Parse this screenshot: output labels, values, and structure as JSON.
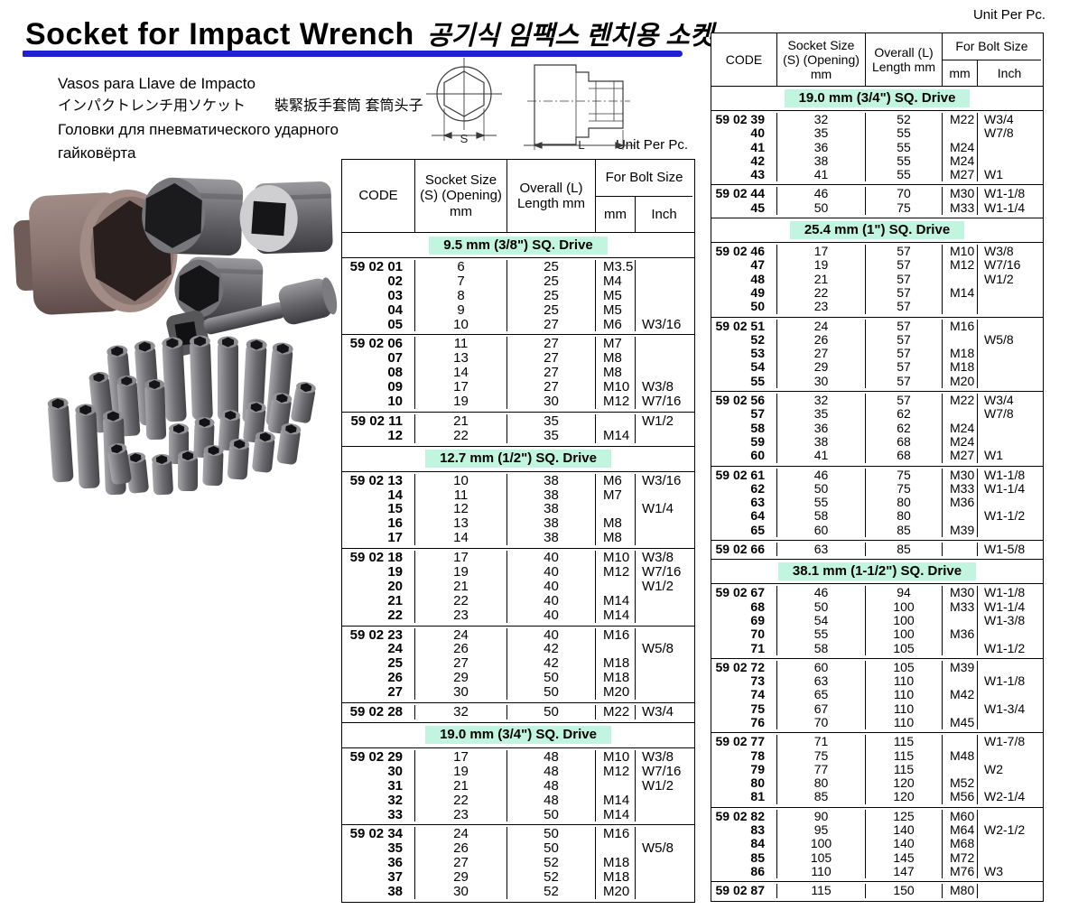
{
  "page": {
    "title_en": "Socket for Impact Wrench",
    "title_ko": "공기식 임팩스 렌치용 소켓",
    "unit_label": "Unit Per Pc.",
    "accent_blue": "#2222cc",
    "band_green": "#c2f5df",
    "subtitle": [
      "Vasos para Llave de Impacto",
      "インパクトレンチ用ソケット　　裝緊扳手套筒 套筒头子",
      "Головки для пневматического ударного",
      "гайковёрта"
    ]
  },
  "drawing": {
    "dim_s": "S",
    "dim_l": "L"
  },
  "headers": {
    "code": "CODE",
    "size1": "Socket Size",
    "size2": "(S) (Opening)",
    "size3": "mm",
    "len1": "Overall (L)",
    "len2": "Length mm",
    "bolt": "For Bolt Size",
    "mm": "mm",
    "inch": "Inch"
  },
  "left_table": {
    "sections": [
      {
        "band": "9.5 mm (3/8\") SQ. Drive",
        "groups": [
          [
            [
              "59 02 01",
              "6",
              "25",
              "M3.5",
              ""
            ],
            [
              "02",
              "7",
              "25",
              "M4",
              ""
            ],
            [
              "03",
              "8",
              "25",
              "M5",
              ""
            ],
            [
              "04",
              "9",
              "25",
              "M5",
              ""
            ],
            [
              "05",
              "10",
              "27",
              "M6",
              "W3/16"
            ]
          ],
          [
            [
              "59 02 06",
              "11",
              "27",
              "M7",
              ""
            ],
            [
              "07",
              "13",
              "27",
              "M8",
              ""
            ],
            [
              "08",
              "14",
              "27",
              "M8",
              ""
            ],
            [
              "09",
              "17",
              "27",
              "M10",
              "W3/8"
            ],
            [
              "10",
              "19",
              "30",
              "M12",
              "W7/16"
            ]
          ],
          [
            [
              "59 02 11",
              "21",
              "35",
              "",
              "W1/2"
            ],
            [
              "12",
              "22",
              "35",
              "M14",
              ""
            ]
          ]
        ]
      },
      {
        "band": "12.7 mm (1/2\") SQ. Drive",
        "groups": [
          [
            [
              "59 02 13",
              "10",
              "38",
              "M6",
              "W3/16"
            ],
            [
              "14",
              "11",
              "38",
              "M7",
              ""
            ],
            [
              "15",
              "12",
              "38",
              "",
              "W1/4"
            ],
            [
              "16",
              "13",
              "38",
              "M8",
              ""
            ],
            [
              "17",
              "14",
              "38",
              "M8",
              ""
            ]
          ],
          [
            [
              "59 02 18",
              "17",
              "40",
              "M10",
              "W3/8"
            ],
            [
              "19",
              "19",
              "40",
              "M12",
              "W7/16"
            ],
            [
              "20",
              "21",
              "40",
              "",
              "W1/2"
            ],
            [
              "21",
              "22",
              "40",
              "M14",
              ""
            ],
            [
              "22",
              "23",
              "40",
              "M14",
              ""
            ]
          ],
          [
            [
              "59 02 23",
              "24",
              "40",
              "M16",
              ""
            ],
            [
              "24",
              "26",
              "42",
              "",
              "W5/8"
            ],
            [
              "25",
              "27",
              "42",
              "M18",
              ""
            ],
            [
              "26",
              "29",
              "50",
              "M18",
              ""
            ],
            [
              "27",
              "30",
              "50",
              "M20",
              ""
            ]
          ],
          [
            [
              "59 02 28",
              "32",
              "50",
              "M22",
              "W3/4"
            ]
          ]
        ]
      },
      {
        "band": "19.0 mm (3/4\") SQ. Drive",
        "groups": [
          [
            [
              "59 02 29",
              "17",
              "48",
              "M10",
              "W3/8"
            ],
            [
              "30",
              "19",
              "48",
              "M12",
              "W7/16"
            ],
            [
              "31",
              "21",
              "48",
              "",
              "W1/2"
            ],
            [
              "32",
              "22",
              "48",
              "M14",
              ""
            ],
            [
              "33",
              "23",
              "50",
              "M14",
              ""
            ]
          ],
          [
            [
              "59 02 34",
              "24",
              "50",
              "M16",
              ""
            ],
            [
              "35",
              "26",
              "50",
              "",
              "W5/8"
            ],
            [
              "36",
              "27",
              "52",
              "M18",
              ""
            ],
            [
              "37",
              "29",
              "52",
              "M18",
              ""
            ],
            [
              "38",
              "30",
              "52",
              "M20",
              ""
            ]
          ]
        ]
      }
    ]
  },
  "right_table": {
    "sections": [
      {
        "band": "19.0 mm (3/4\") SQ. Drive",
        "groups": [
          [
            [
              "59 02 39",
              "32",
              "52",
              "M22",
              "W3/4"
            ],
            [
              "40",
              "35",
              "55",
              "",
              "W7/8"
            ],
            [
              "41",
              "36",
              "55",
              "M24",
              ""
            ],
            [
              "42",
              "38",
              "55",
              "M24",
              ""
            ],
            [
              "43",
              "41",
              "55",
              "M27",
              "W1"
            ]
          ],
          [
            [
              "59 02 44",
              "46",
              "70",
              "M30",
              "W1-1/8"
            ],
            [
              "45",
              "50",
              "75",
              "M33",
              "W1-1/4"
            ]
          ]
        ]
      },
      {
        "band": "25.4 mm (1\") SQ. Drive",
        "groups": [
          [
            [
              "59 02 46",
              "17",
              "57",
              "M10",
              "W3/8"
            ],
            [
              "47",
              "19",
              "57",
              "M12",
              "W7/16"
            ],
            [
              "48",
              "21",
              "57",
              "",
              "W1/2"
            ],
            [
              "49",
              "22",
              "57",
              "M14",
              ""
            ],
            [
              "50",
              "23",
              "57",
              "",
              ""
            ]
          ],
          [
            [
              "59 02 51",
              "24",
              "57",
              "M16",
              ""
            ],
            [
              "52",
              "26",
              "57",
              "",
              "W5/8"
            ],
            [
              "53",
              "27",
              "57",
              "M18",
              ""
            ],
            [
              "54",
              "29",
              "57",
              "M18",
              ""
            ],
            [
              "55",
              "30",
              "57",
              "M20",
              ""
            ]
          ],
          [
            [
              "59 02 56",
              "32",
              "57",
              "M22",
              "W3/4"
            ],
            [
              "57",
              "35",
              "62",
              "",
              "W7/8"
            ],
            [
              "58",
              "36",
              "62",
              "M24",
              ""
            ],
            [
              "59",
              "38",
              "68",
              "M24",
              ""
            ],
            [
              "60",
              "41",
              "68",
              "M27",
              "W1"
            ]
          ],
          [
            [
              "59 02 61",
              "46",
              "75",
              "M30",
              "W1-1/8"
            ],
            [
              "62",
              "50",
              "75",
              "M33",
              "W1-1/4"
            ],
            [
              "63",
              "55",
              "80",
              "M36",
              ""
            ],
            [
              "64",
              "58",
              "80",
              "",
              "W1-1/2"
            ],
            [
              "65",
              "60",
              "85",
              "M39",
              ""
            ]
          ],
          [
            [
              "59 02 66",
              "63",
              "85",
              "",
              "W1-5/8"
            ]
          ]
        ]
      },
      {
        "band": "38.1 mm (1-1/2\") SQ. Drive",
        "groups": [
          [
            [
              "59 02 67",
              "46",
              "94",
              "M30",
              "W1-1/8"
            ],
            [
              "68",
              "50",
              "100",
              "M33",
              "W1-1/4"
            ],
            [
              "69",
              "54",
              "100",
              "",
              "W1-3/8"
            ],
            [
              "70",
              "55",
              "100",
              "M36",
              ""
            ],
            [
              "71",
              "58",
              "105",
              "",
              "W1-1/2"
            ]
          ],
          [
            [
              "59 02 72",
              "60",
              "105",
              "M39",
              ""
            ],
            [
              "73",
              "63",
              "110",
              "",
              "W1-1/8"
            ],
            [
              "74",
              "65",
              "110",
              "M42",
              ""
            ],
            [
              "75",
              "67",
              "110",
              "",
              "W1-3/4"
            ],
            [
              "76",
              "70",
              "110",
              "M45",
              ""
            ]
          ],
          [
            [
              "59 02 77",
              "71",
              "115",
              "",
              "W1-7/8"
            ],
            [
              "78",
              "75",
              "115",
              "M48",
              ""
            ],
            [
              "79",
              "77",
              "115",
              "",
              "W2"
            ],
            [
              "80",
              "80",
              "120",
              "M52",
              ""
            ],
            [
              "81",
              "85",
              "120",
              "M56",
              "W2-1/4"
            ]
          ],
          [
            [
              "59 02 82",
              "90",
              "125",
              "M60",
              ""
            ],
            [
              "83",
              "95",
              "140",
              "M64",
              "W2-1/2"
            ],
            [
              "84",
              "100",
              "140",
              "M68",
              ""
            ],
            [
              "85",
              "105",
              "145",
              "M72",
              ""
            ],
            [
              "86",
              "110",
              "147",
              "M76",
              "W3"
            ]
          ],
          [
            [
              "59 02 87",
              "115",
              "150",
              "M80",
              ""
            ]
          ]
        ]
      }
    ]
  }
}
